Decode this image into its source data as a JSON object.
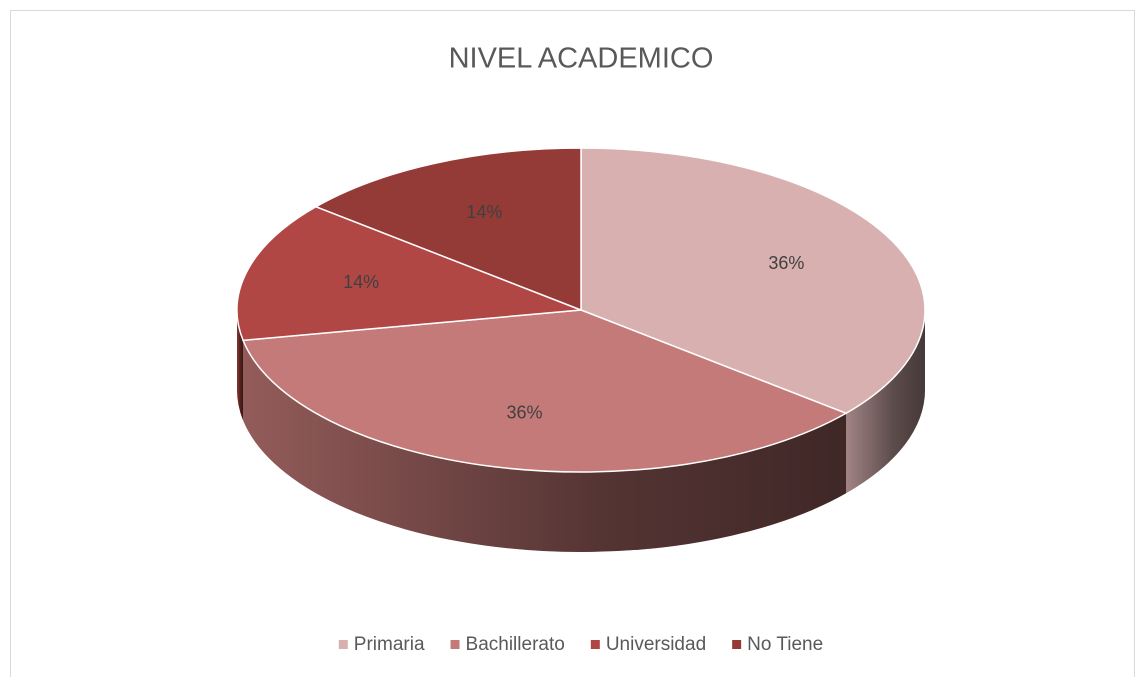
{
  "chart_data": {
    "type": "pie",
    "title": "NIVEL ACADEMICO",
    "categories": [
      "Primaria",
      "Bachillerato",
      "Universidad",
      "No Tiene"
    ],
    "values": [
      36,
      36,
      14,
      14
    ],
    "value_labels": [
      "36%",
      "36%",
      "14%",
      "14%"
    ],
    "colors": [
      "#d9b0b0",
      "#c47a78",
      "#b04744",
      "#943a37"
    ],
    "legend": "bottom"
  }
}
